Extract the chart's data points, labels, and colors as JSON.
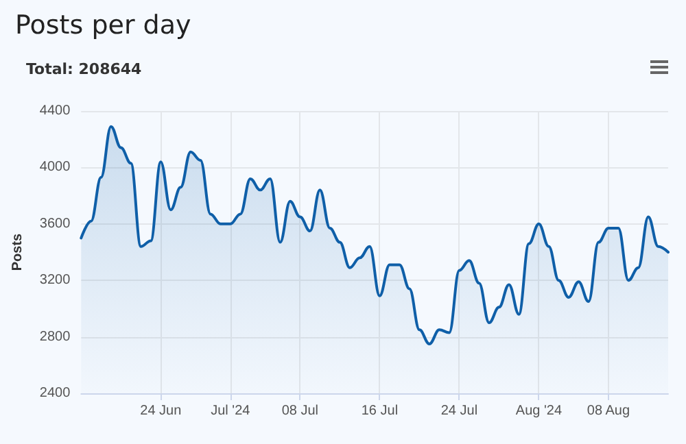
{
  "chart_data": {
    "type": "area",
    "title": "Posts per day",
    "subtitle": "Total: 208644",
    "ylabel": "Posts",
    "x": [
      "2024-06-16",
      "2024-06-17",
      "2024-06-18",
      "2024-06-19",
      "2024-06-20",
      "2024-06-21",
      "2024-06-22",
      "2024-06-23",
      "2024-06-24",
      "2024-06-25",
      "2024-06-26",
      "2024-06-27",
      "2024-06-28",
      "2024-06-29",
      "2024-06-30",
      "2024-07-01",
      "2024-07-02",
      "2024-07-03",
      "2024-07-04",
      "2024-07-05",
      "2024-07-06",
      "2024-07-07",
      "2024-07-08",
      "2024-07-09",
      "2024-07-10",
      "2024-07-11",
      "2024-07-12",
      "2024-07-13",
      "2024-07-14",
      "2024-07-15",
      "2024-07-16",
      "2024-07-17",
      "2024-07-18",
      "2024-07-19",
      "2024-07-20",
      "2024-07-21",
      "2024-07-22",
      "2024-07-23",
      "2024-07-24",
      "2024-07-25",
      "2024-07-26",
      "2024-07-27",
      "2024-07-28",
      "2024-07-29",
      "2024-07-30",
      "2024-07-31",
      "2024-08-01",
      "2024-08-02",
      "2024-08-03",
      "2024-08-04",
      "2024-08-05",
      "2024-08-06",
      "2024-08-07",
      "2024-08-08",
      "2024-08-09",
      "2024-08-10",
      "2024-08-11",
      "2024-08-12",
      "2024-08-13",
      "2024-08-14"
    ],
    "series": [
      {
        "color": "#0f5fa8",
        "values": [
          3500,
          3620,
          3930,
          4290,
          4140,
          4030,
          3440,
          3480,
          4040,
          3700,
          3860,
          4110,
          4050,
          3670,
          3600,
          3600,
          3670,
          3920,
          3840,
          3920,
          3470,
          3760,
          3650,
          3550,
          3840,
          3570,
          3470,
          3290,
          3360,
          3440,
          3090,
          3310,
          3310,
          3140,
          2850,
          2750,
          2850,
          2830,
          3270,
          3340,
          3180,
          2900,
          3010,
          3170,
          2960,
          3460,
          3600,
          3440,
          3200,
          3080,
          3190,
          3050,
          3470,
          3570,
          3570,
          3200,
          3290,
          3650,
          3440,
          3400
        ]
      }
    ],
    "xlim": [
      "2024-06-16",
      "2024-08-14"
    ],
    "xticks": [
      {
        "value": "2024-06-24",
        "label": "24 Jun"
      },
      {
        "value": "2024-07-01",
        "label": "Jul '24"
      },
      {
        "value": "2024-07-08",
        "label": "08 Jul"
      },
      {
        "value": "2024-07-16",
        "label": "16 Jul"
      },
      {
        "value": "2024-07-24",
        "label": "24 Jul"
      },
      {
        "value": "2024-08-01",
        "label": "Aug '24"
      },
      {
        "value": "2024-08-08",
        "label": "08 Aug"
      }
    ],
    "ylim": [
      2400,
      4400
    ],
    "yticks": [
      2400,
      2800,
      3200,
      3600,
      4000,
      4400
    ],
    "grid": true,
    "marker": "none",
    "line_style": "solid"
  }
}
